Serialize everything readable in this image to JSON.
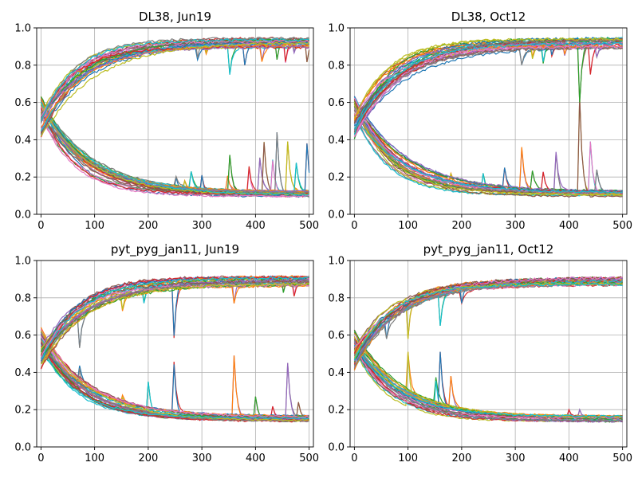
{
  "figure": {
    "background": "#ffffff"
  },
  "palette": [
    "#1f77b4",
    "#ff7f0e",
    "#2ca02c",
    "#d62728",
    "#9467bd",
    "#8c564b",
    "#e377c2",
    "#7f7f7f",
    "#bcbd22",
    "#17becf"
  ],
  "chart_data": [
    {
      "type": "line",
      "title": "DL38, Jun19",
      "xlim": [
        -8,
        508
      ],
      "ylim": [
        0,
        1.0
      ],
      "xticks": [
        0,
        100,
        200,
        300,
        400,
        500
      ],
      "yticks": [
        0.0,
        0.2,
        0.4,
        0.6,
        0.8,
        1.0
      ],
      "grid": true,
      "series_count_per_band": 30,
      "upper_band": {
        "start": 0.47,
        "end": 0.92,
        "spikes_down": [
          [
            290,
            0.8
          ],
          [
            305,
            0.82
          ],
          [
            350,
            0.68
          ],
          [
            380,
            0.8
          ],
          [
            410,
            0.78
          ],
          [
            440,
            0.83
          ],
          [
            455,
            0.79
          ],
          [
            470,
            0.84
          ],
          [
            495,
            0.79
          ]
        ]
      },
      "lower_band": {
        "start": 0.58,
        "end": 0.11,
        "spikes_up": [
          [
            250,
            0.23
          ],
          [
            265,
            0.22
          ],
          [
            280,
            0.23
          ],
          [
            300,
            0.21
          ],
          [
            345,
            0.27
          ],
          [
            350,
            0.42
          ],
          [
            385,
            0.37
          ],
          [
            405,
            0.45
          ],
          [
            415,
            0.45
          ],
          [
            430,
            0.38
          ],
          [
            440,
            0.44
          ],
          [
            460,
            0.39
          ],
          [
            475,
            0.31
          ],
          [
            495,
            0.44
          ]
        ]
      }
    },
    {
      "type": "line",
      "title": "DL38, Oct12",
      "xlim": [
        -8,
        508
      ],
      "ylim": [
        0,
        1.0
      ],
      "xticks": [
        0,
        100,
        200,
        300,
        400,
        500
      ],
      "yticks": [
        0.0,
        0.2,
        0.4,
        0.6,
        0.8,
        1.0
      ],
      "grid": true,
      "series_count_per_band": 30,
      "upper_band": {
        "start": 0.47,
        "end": 0.92,
        "spikes_down": [
          [
            310,
            0.76
          ],
          [
            330,
            0.8
          ],
          [
            350,
            0.76
          ],
          [
            365,
            0.8
          ],
          [
            390,
            0.82
          ],
          [
            420,
            0.6
          ],
          [
            440,
            0.75
          ],
          [
            450,
            0.82
          ]
        ]
      },
      "lower_band": {
        "start": 0.58,
        "end": 0.11,
        "spikes_up": [
          [
            150,
            0.25
          ],
          [
            180,
            0.22
          ],
          [
            240,
            0.22
          ],
          [
            280,
            0.25
          ],
          [
            310,
            0.47
          ],
          [
            330,
            0.28
          ],
          [
            350,
            0.28
          ],
          [
            375,
            0.38
          ],
          [
            420,
            0.63
          ],
          [
            440,
            0.39
          ],
          [
            450,
            0.3
          ]
        ]
      }
    },
    {
      "type": "line",
      "title": "pyt_pyg_jan11, Jun19",
      "xlim": [
        -8,
        508
      ],
      "ylim": [
        0,
        1.0
      ],
      "xticks": [
        0,
        100,
        200,
        300,
        400,
        500
      ],
      "yticks": [
        0.0,
        0.2,
        0.4,
        0.6,
        0.8,
        1.0
      ],
      "grid": true,
      "series_count_per_band": 30,
      "upper_band": {
        "start": 0.47,
        "end": 0.89,
        "spikes_down": [
          [
            70,
            0.45
          ],
          [
            150,
            0.69
          ],
          [
            190,
            0.73
          ],
          [
            245,
            0.35
          ],
          [
            360,
            0.77
          ],
          [
            450,
            0.79
          ],
          [
            470,
            0.77
          ]
        ]
      },
      "lower_band": {
        "start": 0.58,
        "end": 0.15,
        "spikes_up": [
          [
            70,
            0.48
          ],
          [
            150,
            0.3
          ],
          [
            200,
            0.35
          ],
          [
            245,
            0.68
          ],
          [
            360,
            0.49
          ],
          [
            400,
            0.27
          ],
          [
            430,
            0.25
          ],
          [
            460,
            0.45
          ],
          [
            480,
            0.24
          ]
        ]
      }
    },
    {
      "type": "line",
      "title": "pyt_pyg_jan11, Oct12",
      "xlim": [
        -8,
        508
      ],
      "ylim": [
        0,
        1.0
      ],
      "xticks": [
        0,
        100,
        200,
        300,
        400,
        500
      ],
      "yticks": [
        0.0,
        0.2,
        0.4,
        0.6,
        0.8,
        1.0
      ],
      "grid": true,
      "series_count_per_band": 30,
      "upper_band": {
        "start": 0.47,
        "end": 0.89,
        "spikes_down": [
          [
            60,
            0.58
          ],
          [
            100,
            0.58
          ],
          [
            160,
            0.65
          ],
          [
            200,
            0.77
          ]
        ]
      },
      "lower_band": {
        "start": 0.58,
        "end": 0.15,
        "spikes_up": [
          [
            50,
            0.4
          ],
          [
            100,
            0.51
          ],
          [
            150,
            0.44
          ],
          [
            160,
            0.51
          ],
          [
            180,
            0.38
          ],
          [
            220,
            0.2
          ],
          [
            400,
            0.2
          ],
          [
            420,
            0.2
          ]
        ]
      }
    }
  ]
}
